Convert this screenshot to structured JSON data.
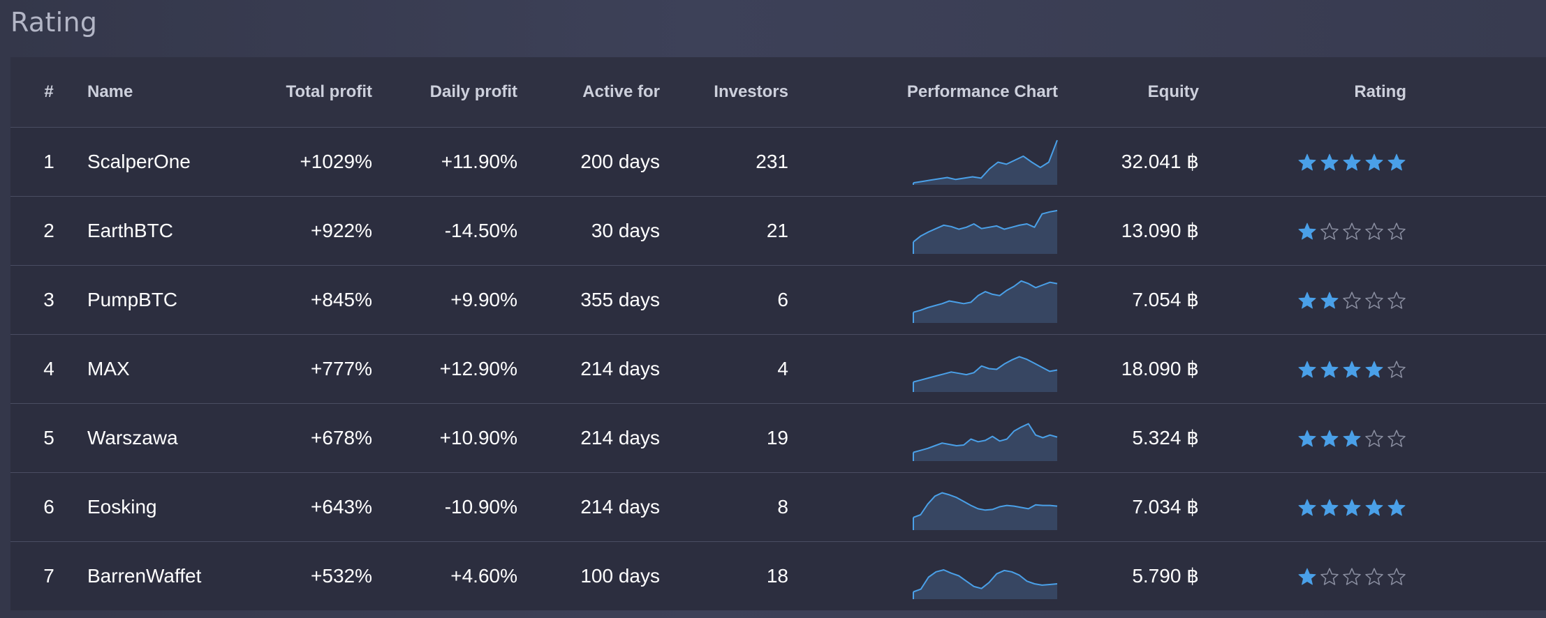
{
  "page": {
    "title": "Rating"
  },
  "table": {
    "headers": {
      "rank": "#",
      "name": "Name",
      "total_profit": "Total profit",
      "daily_profit": "Daily profit",
      "active_for": "Active for",
      "investors": "Investors",
      "performance_chart": "Performance Chart",
      "equity": "Equity",
      "rating": "Rating"
    },
    "rows": [
      {
        "rank": "1",
        "name": "ScalperOne",
        "total_profit": "+1029%",
        "daily_profit": "+11.90%",
        "daily_positive": true,
        "active_for": "200 days",
        "investors": "231",
        "equity": "32.041 ฿",
        "stars": 5,
        "performance": [
          2,
          4,
          6,
          8,
          10,
          7,
          9,
          11,
          9,
          23,
          33,
          30,
          36,
          42,
          33,
          25,
          33,
          66
        ]
      },
      {
        "rank": "2",
        "name": "EarthBTC",
        "total_profit": "+922%",
        "daily_profit": "-14.50%",
        "daily_positive": false,
        "active_for": "30 days",
        "investors": "21",
        "equity": "13.090 ฿",
        "stars": 1,
        "performance": [
          17,
          26,
          32,
          37,
          42,
          40,
          36,
          39,
          44,
          37,
          39,
          41,
          36,
          39,
          42,
          44,
          39,
          59,
          62,
          64
        ]
      },
      {
        "rank": "3",
        "name": "PumpBTC",
        "total_profit": "+845%",
        "daily_profit": "+9.90%",
        "daily_positive": true,
        "active_for": "355 days",
        "investors": "6",
        "equity": "7.054 ฿",
        "stars": 2,
        "performance": [
          15,
          18,
          22,
          25,
          28,
          32,
          30,
          28,
          30,
          40,
          46,
          42,
          40,
          48,
          54,
          62,
          58,
          52,
          56,
          60,
          58
        ]
      },
      {
        "rank": "4",
        "name": "MAX",
        "total_profit": "+777%",
        "daily_profit": "+12.90%",
        "daily_positive": true,
        "active_for": "214 days",
        "investors": "4",
        "equity": "18.090 ฿",
        "stars": 4,
        "performance": [
          14,
          17,
          20,
          23,
          26,
          29,
          27,
          25,
          28,
          38,
          34,
          33,
          41,
          47,
          52,
          48,
          42,
          36,
          30,
          32
        ]
      },
      {
        "rank": "5",
        "name": "Warszawa",
        "total_profit": "+678%",
        "daily_profit": "+10.90%",
        "daily_positive": true,
        "active_for": "214 days",
        "investors": "19",
        "equity": "5.324 ฿",
        "stars": 3,
        "performance": [
          12,
          15,
          18,
          22,
          26,
          24,
          22,
          23,
          32,
          28,
          30,
          36,
          29,
          32,
          44,
          50,
          55,
          38,
          34,
          38,
          35
        ]
      },
      {
        "rank": "6",
        "name": "Eosking",
        "total_profit": "+643%",
        "daily_profit": "-10.90%",
        "daily_positive": false,
        "active_for": "214 days",
        "investors": "8",
        "equity": "7.034 ฿",
        "stars": 5,
        "performance": [
          18,
          22,
          38,
          50,
          55,
          52,
          48,
          42,
          36,
          31,
          29,
          30,
          34,
          36,
          35,
          33,
          31,
          37,
          36,
          36,
          35
        ]
      },
      {
        "rank": "7",
        "name": "BarrenWaffet",
        "total_profit": "+532%",
        "daily_profit": "+4.60%",
        "daily_positive": true,
        "active_for": "100 days",
        "investors": "18",
        "equity": "5.790 ฿",
        "stars": 1,
        "performance": [
          10,
          14,
          32,
          40,
          43,
          38,
          34,
          26,
          18,
          15,
          24,
          37,
          42,
          40,
          35,
          26,
          22,
          20,
          21,
          22
        ]
      }
    ]
  },
  "colors": {
    "positive": "#46ad66",
    "negative": "#e2452c",
    "accent": "#4aa0e8",
    "star_empty": "#8a8ea0"
  }
}
